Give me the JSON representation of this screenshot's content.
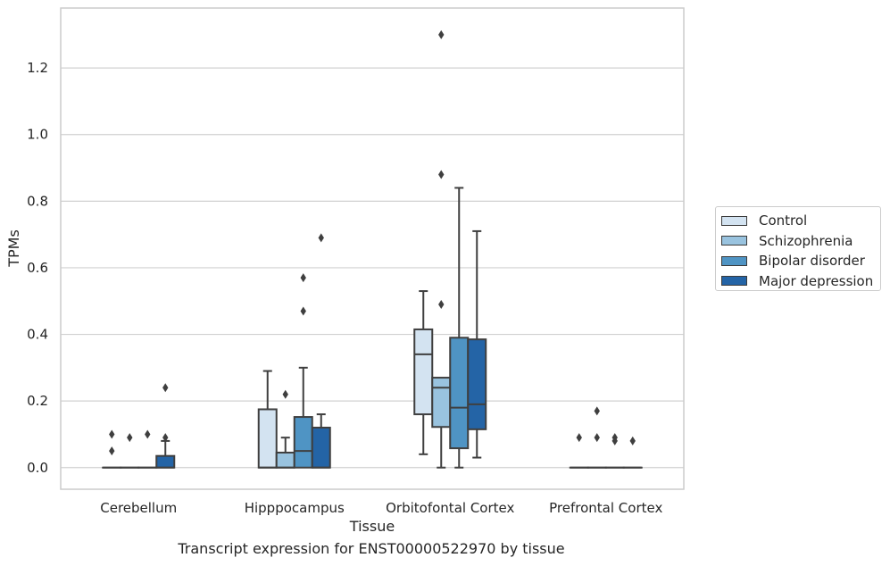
{
  "chart_data": {
    "type": "box",
    "ylabel": "TPMs",
    "xlabel": "Tissue",
    "caption": "Transcript expression for ENST00000522970 by tissue",
    "categories": [
      "Cerebellum",
      "Hipppocampus",
      "Orbitofontal Cortex",
      "Prefrontal Cortex"
    ],
    "ylim": [
      -0.065,
      1.38
    ],
    "yticks": [
      0.0,
      0.2,
      0.4,
      0.6,
      0.8,
      1.0,
      1.2
    ],
    "ytick_labels": [
      "0.0",
      "0.2",
      "0.4",
      "0.6",
      "0.8",
      "1.0",
      "1.2"
    ],
    "grid": "horizontal",
    "legend_position": "right",
    "series": [
      {
        "name": "Control",
        "color": "#d3e3f1",
        "boxes": [
          {
            "min": 0.0,
            "q1": 0.0,
            "median": 0.0,
            "q3": 0.0,
            "max": 0.0,
            "outliers": [
              0.1,
              0.05
            ]
          },
          {
            "min": 0.0,
            "q1": 0.0,
            "median": 0.0,
            "q3": 0.175,
            "max": 0.29,
            "outliers": []
          },
          {
            "min": 0.04,
            "q1": 0.16,
            "median": 0.34,
            "q3": 0.415,
            "max": 0.53,
            "outliers": []
          },
          {
            "min": 0.0,
            "q1": 0.0,
            "median": 0.0,
            "q3": 0.0,
            "max": 0.0,
            "outliers": [
              0.09
            ]
          }
        ]
      },
      {
        "name": "Schizophrenia",
        "color": "#99c3df",
        "boxes": [
          {
            "min": 0.0,
            "q1": 0.0,
            "median": 0.0,
            "q3": 0.0,
            "max": 0.0,
            "outliers": [
              0.09
            ]
          },
          {
            "min": 0.0,
            "q1": 0.0,
            "median": 0.0,
            "q3": 0.045,
            "max": 0.09,
            "outliers": [
              0.22
            ]
          },
          {
            "min": 0.0,
            "q1": 0.122,
            "median": 0.24,
            "q3": 0.27,
            "max": 0.27,
            "outliers": [
              0.49,
              0.88,
              1.3
            ]
          },
          {
            "min": 0.0,
            "q1": 0.0,
            "median": 0.0,
            "q3": 0.0,
            "max": 0.0,
            "outliers": [
              0.09,
              0.17
            ]
          }
        ]
      },
      {
        "name": "Bipolar disorder",
        "color": "#4f94c4",
        "boxes": [
          {
            "min": 0.0,
            "q1": 0.0,
            "median": 0.0,
            "q3": 0.0,
            "max": 0.0,
            "outliers": [
              0.1
            ]
          },
          {
            "min": 0.0,
            "q1": 0.0,
            "median": 0.05,
            "q3": 0.152,
            "max": 0.3,
            "outliers": [
              0.47,
              0.57
            ]
          },
          {
            "min": 0.0,
            "q1": 0.058,
            "median": 0.18,
            "q3": 0.39,
            "max": 0.84,
            "outliers": []
          },
          {
            "min": 0.0,
            "q1": 0.0,
            "median": 0.0,
            "q3": 0.0,
            "max": 0.0,
            "outliers": [
              0.09,
              0.08
            ]
          }
        ]
      },
      {
        "name": "Major depression",
        "color": "#2464a6",
        "boxes": [
          {
            "min": 0.0,
            "q1": 0.0,
            "median": 0.0,
            "q3": 0.035,
            "max": 0.08,
            "outliers": [
              0.09,
              0.24
            ]
          },
          {
            "min": 0.0,
            "q1": 0.0,
            "median": 0.0,
            "q3": 0.12,
            "max": 0.16,
            "outliers": [
              0.69
            ]
          },
          {
            "min": 0.03,
            "q1": 0.115,
            "median": 0.19,
            "q3": 0.385,
            "max": 0.71,
            "outliers": []
          },
          {
            "min": 0.0,
            "q1": 0.0,
            "median": 0.0,
            "q3": 0.0,
            "max": 0.0,
            "outliers": [
              0.08
            ]
          }
        ]
      }
    ]
  }
}
